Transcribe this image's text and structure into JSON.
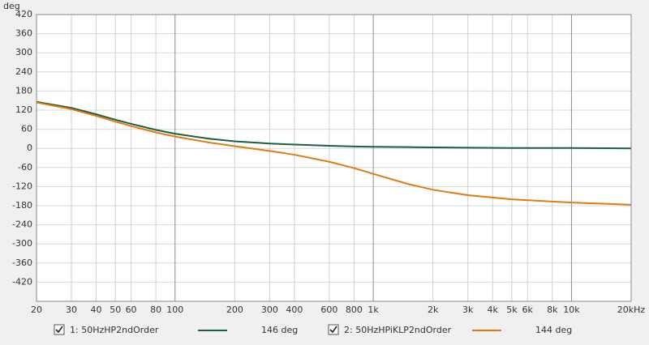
{
  "chart_data": {
    "type": "line",
    "y_label": "deg",
    "log_x": true,
    "grid": true,
    "xlim": [
      20,
      20000
    ],
    "ylim": [
      -480,
      420
    ],
    "yticks": [
      420,
      360,
      300,
      240,
      180,
      120,
      60,
      0,
      -60,
      -120,
      -180,
      -240,
      -300,
      -360,
      -420
    ],
    "xticks": [
      20,
      30,
      40,
      50,
      60,
      80,
      100,
      200,
      300,
      400,
      600,
      800,
      {
        "value": 1000,
        "label": "1k"
      },
      {
        "value": 2000,
        "label": "2k"
      },
      {
        "value": 3000,
        "label": "3k"
      },
      {
        "value": 4000,
        "label": "4k"
      },
      {
        "value": 5000,
        "label": "5k"
      },
      {
        "value": 6000,
        "label": "6k"
      },
      {
        "value": 8000,
        "label": "8k"
      },
      {
        "value": 10000,
        "label": "10k"
      },
      {
        "value": 20000,
        "label": "20kHz"
      }
    ],
    "x": [
      20,
      30,
      40,
      50,
      60,
      80,
      100,
      150,
      200,
      300,
      400,
      600,
      800,
      1000,
      1500,
      2000,
      3000,
      5000,
      10000,
      20000
    ],
    "series": [
      {
        "name": "1: 50HzHP2ndOrder",
        "color": "#1e5e3c",
        "readout": "146 deg",
        "values": [
          146,
          127,
          107,
          90,
          77,
          58,
          46,
          30,
          22,
          15,
          12,
          8,
          6,
          5,
          4,
          3,
          2,
          1,
          1,
          0
        ]
      },
      {
        "name": "2: 50HzHPiKLP2ndOrder",
        "color": "#e07b10",
        "readout": "144 deg",
        "values": [
          144,
          123,
          102,
          84,
          70,
          50,
          37,
          18,
          7,
          -8,
          -20,
          -42,
          -62,
          -80,
          -112,
          -130,
          -147,
          -160,
          -170,
          -177
        ]
      }
    ]
  }
}
